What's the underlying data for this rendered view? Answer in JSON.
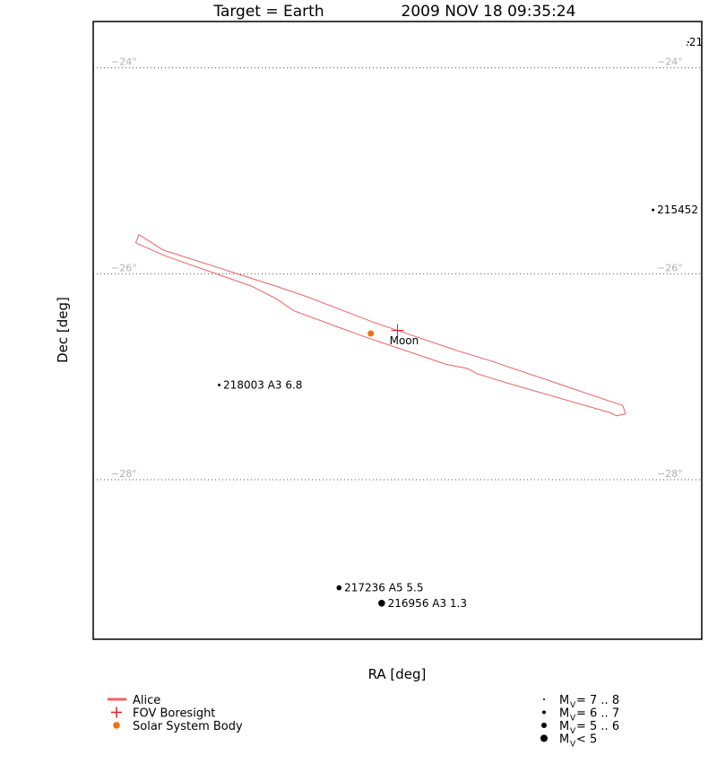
{
  "header": {
    "target": "Target = Earth",
    "timestamp": "2009 NOV 18 09:35:24"
  },
  "chart_data": {
    "type": "scatter",
    "xlabel": "RA [deg]",
    "ylabel": "Dec [deg]",
    "dec_range": [
      -29.55,
      -23.55
    ],
    "grid": "dotted declination lines",
    "dec_gridlines": [
      {
        "value": -24,
        "label": "−24°"
      },
      {
        "value": -26,
        "label": "−26°"
      },
      {
        "value": -28,
        "label": "−28°"
      }
    ],
    "stars": [
      {
        "label": ".21",
        "mag_class": "7..8",
        "x_frac": 0.978,
        "dec": -23.75
      },
      {
        "label": "215452",
        "mag_class": "6..7",
        "x_frac": 0.92,
        "dec": -25.38
      },
      {
        "label": "218003 A3 6.8",
        "mag_class": "6..7",
        "x_frac": 0.207,
        "dec": -27.08
      },
      {
        "label": "217236 A5 5.5",
        "mag_class": "5..6",
        "x_frac": 0.404,
        "dec": -29.05
      },
      {
        "label": "216956 A3 1.3",
        "mag_class": "<5",
        "x_frac": 0.474,
        "dec": -29.2
      }
    ],
    "bodies": [
      {
        "label": "Moon",
        "x_frac": 0.456,
        "dec": -26.58,
        "color": "#f07010"
      }
    ],
    "boresight": {
      "x_frac": 0.5,
      "dec": -26.55
    },
    "fov": {
      "name": "Alice",
      "color": "#f06060",
      "outline": [
        [
          0.075,
          -25.62
        ],
        [
          0.115,
          -25.77
        ],
        [
          0.3,
          -26.12
        ],
        [
          0.35,
          -26.22
        ],
        [
          0.46,
          -26.47
        ],
        [
          0.6,
          -26.75
        ],
        [
          0.65,
          -26.84
        ],
        [
          0.82,
          -27.18
        ],
        [
          0.87,
          -27.28
        ],
        [
          0.875,
          -27.36
        ],
        [
          0.86,
          -27.38
        ],
        [
          0.85,
          -27.35
        ],
        [
          0.68,
          -27.06
        ],
        [
          0.63,
          -26.97
        ],
        [
          0.615,
          -26.92
        ],
        [
          0.58,
          -26.88
        ],
        [
          0.44,
          -26.6
        ],
        [
          0.33,
          -26.36
        ],
        [
          0.3,
          -26.24
        ],
        [
          0.26,
          -26.12
        ],
        [
          0.12,
          -25.83
        ],
        [
          0.07,
          -25.7
        ]
      ]
    },
    "legend_left": [
      {
        "label": "Alice",
        "symbol": "line",
        "color": "#f06060"
      },
      {
        "label": "FOV Boresight",
        "symbol": "plus",
        "color": "#e02020"
      },
      {
        "label": "Solar System Body",
        "symbol": "dot",
        "color": "#f07010"
      }
    ],
    "legend_right": [
      {
        "sub": "V",
        "rest": " = 7 .. 8",
        "dot_size": 1
      },
      {
        "sub": "V",
        "rest": " = 6 .. 7",
        "dot_size": 2
      },
      {
        "sub": "V",
        "rest": " = 5 .. 6",
        "dot_size": 3
      },
      {
        "sub": "V",
        "rest": " < 5",
        "dot_size": 4
      }
    ]
  }
}
